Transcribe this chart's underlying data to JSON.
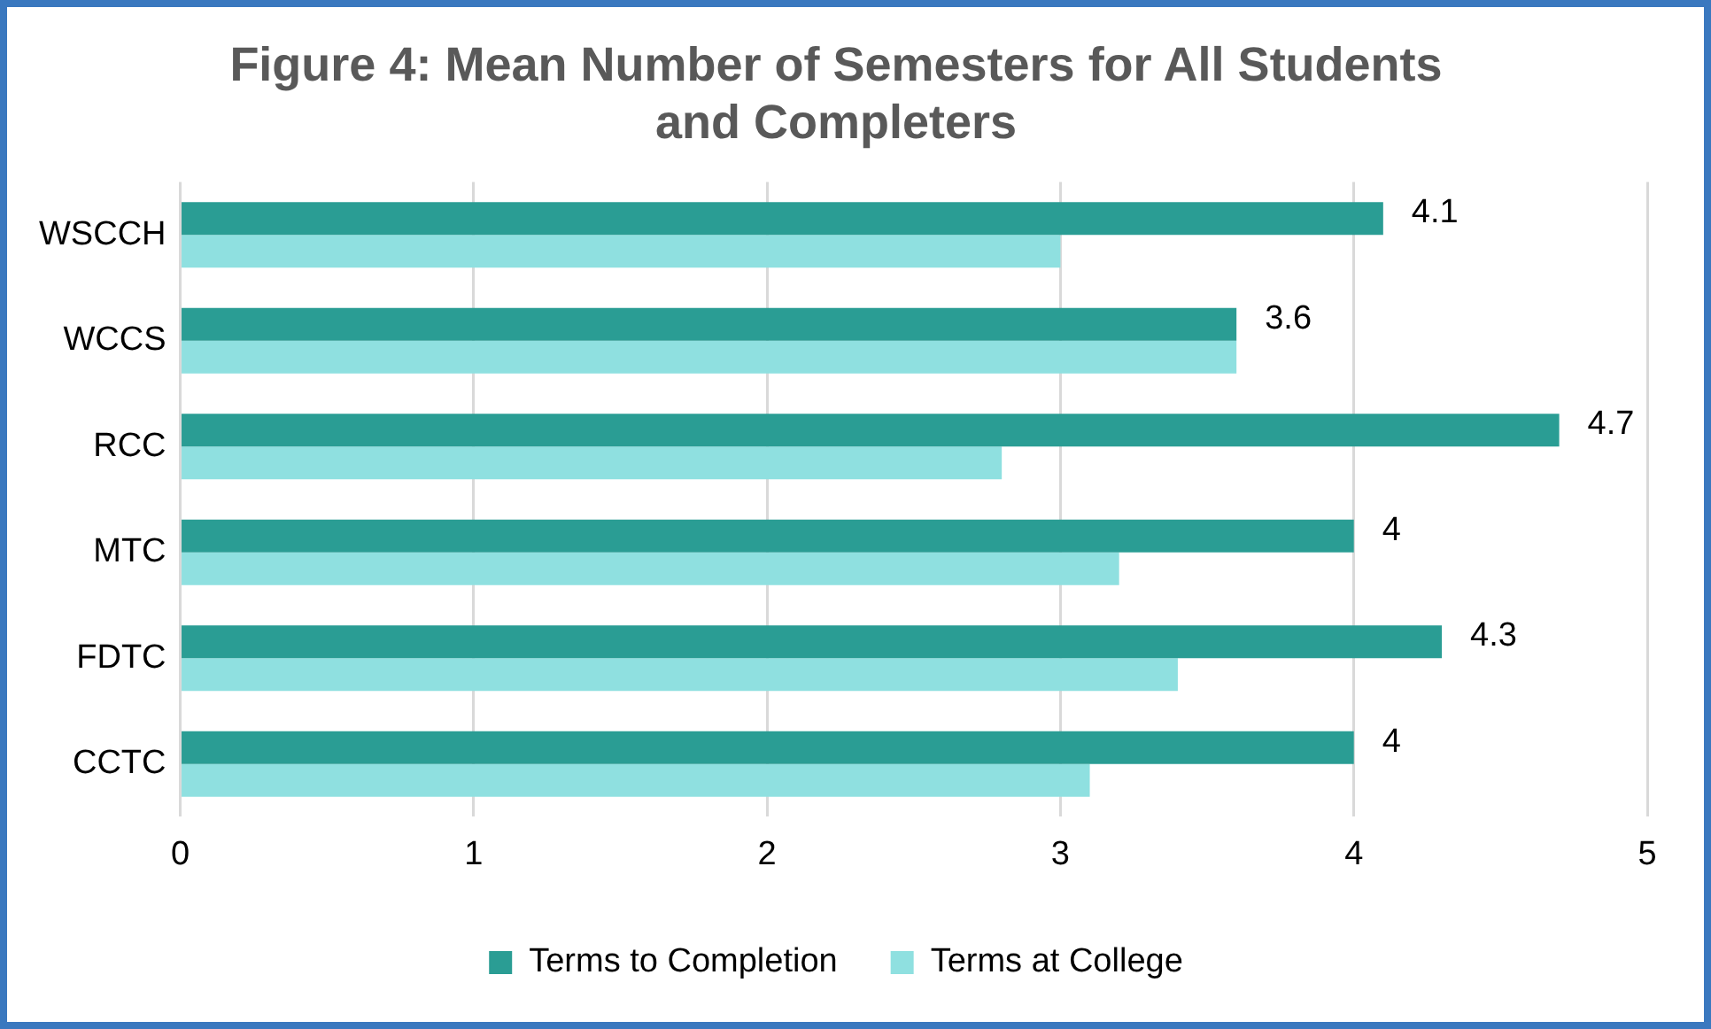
{
  "chart_data": {
    "type": "bar",
    "orientation": "horizontal",
    "title": [
      "Figure 4: Mean Number of Semesters for All Students",
      "and Completers"
    ],
    "categories": [
      "WSCCH",
      "WCCS",
      "RCC",
      "MTC",
      "FDTC",
      "CCTC"
    ],
    "series": [
      {
        "name": "Terms to Completion",
        "color": "#2a9d94",
        "values": [
          4.1,
          3.6,
          4.7,
          4,
          4.3,
          4
        ],
        "value_labels": [
          "4.1",
          "3.6",
          "4.7",
          "4",
          "4.3",
          "4"
        ]
      },
      {
        "name": "Terms at College",
        "color": "#8fe0e0",
        "values": [
          3.0,
          3.6,
          2.8,
          3.2,
          3.4,
          3.1
        ]
      }
    ],
    "xlim": [
      0,
      5
    ],
    "xticks": [
      0,
      1,
      2,
      3,
      4,
      5
    ],
    "grid": "x",
    "legend": "bottom"
  }
}
